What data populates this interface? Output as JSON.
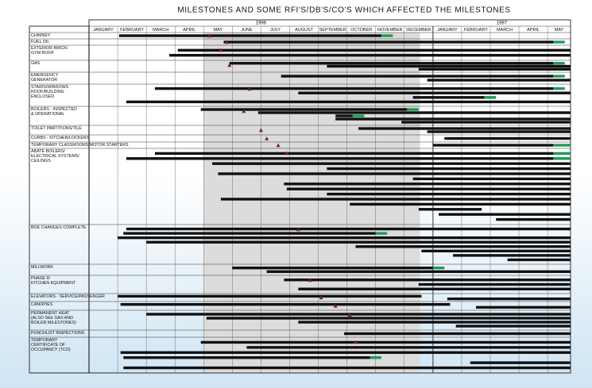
{
  "chart_data": {
    "type": "gantt",
    "title": "MILESTONES AND SOME RFI'S/DB'S/CO'S WHICH AFFECTED THE MILESTONES",
    "years": [
      "1996",
      "1997"
    ],
    "months": [
      "JANUARY",
      "FEBRUARY",
      "MARCH",
      "APRIL",
      "MAY",
      "JUNE",
      "JULY",
      "AUGUST",
      "SEPTEMBER",
      "OCTOBER",
      "NOVEMBER",
      "DECEMBER",
      "JANUARY",
      "FEBRUARY",
      "MARCH",
      "APRIL",
      "MAY"
    ],
    "xlim": [
      0,
      16.8
    ],
    "shaded": [
      4,
      11.55
    ],
    "bar_color": "#111111",
    "done_color": "#1f9a52",
    "milestone_color": "#7a2424",
    "rows": [
      {
        "label": [
          "CHIMNEY"
        ],
        "bars": [
          [
            1.05,
            10.2,
            10.6
          ]
        ],
        "milestone": 4.2
      },
      {
        "label": [
          "FUEL OIL"
        ],
        "bars": [
          [
            4.7,
            16.2,
            16.6
          ]
        ],
        "milestone": 4.8
      },
      {
        "label": [
          "EXTERIOR BRICK/",
          "GYM ROOF"
        ],
        "bars": [
          [
            3.1,
            16.8
          ],
          [
            2.8,
            16.8
          ]
        ],
        "milestone": 4.6
      },
      {
        "label": [
          "GAS"
        ],
        "bars": [
          [
            4.9,
            16.2,
            16.6
          ],
          [
            8.3,
            16.8
          ],
          [
            11.5,
            16.8
          ]
        ],
        "milestone": 4.9
      },
      {
        "label": [
          "EMERGENCY",
          "GENERATOR"
        ],
        "bars": [
          [
            6.7,
            16.2,
            16.6
          ],
          [
            11.8,
            16.8
          ]
        ]
      },
      {
        "label": [
          "STAIRS/WINDOWS",
          "ROOF/BUILDING",
          "ENCLOSED"
        ],
        "bars": [
          [
            2.3,
            16.2,
            16.6
          ],
          [
            7.3,
            16.8
          ],
          [
            11.3,
            13.8,
            14.2
          ],
          [
            1.3,
            16.8
          ]
        ],
        "milestone": 5.6
      },
      {
        "label": [
          "BOILERS - INSPECTED",
          "& OPERATIONAL"
        ],
        "bars": [
          [
            3.9,
            11.1,
            11.5
          ],
          [
            5.9,
            16.8
          ],
          [
            8.6,
            9.2,
            9.6
          ],
          [
            8.6,
            16.8
          ],
          [
            10.9,
            16.8
          ]
        ],
        "milestone": 5.4
      },
      {
        "label": [
          "TOILET PARTITIONS/TILE"
        ],
        "bars": [
          [
            9.4,
            16.8
          ],
          [
            11.8,
            16.8
          ]
        ],
        "milestone": 6.0
      },
      {
        "label": [
          "CURBS - KITCHEN/LOCKERS"
        ],
        "bars": [
          [
            12.4,
            16.8
          ]
        ],
        "milestone": 6.2
      },
      {
        "label": [
          "TEMPORARY CLASSROOMS/MOTOR STARTERS"
        ],
        "bars": [
          [
            12.0,
            16.2,
            16.8
          ]
        ],
        "milestone": 6.6
      },
      {
        "label": [
          "ABATE BOILERS/",
          "ELECTRICAL SYSTEMS/",
          "CEILINGS"
        ],
        "bars": [
          [
            2.3,
            16.2,
            16.8
          ],
          [
            1.3,
            16.2,
            16.8
          ],
          [
            4.3,
            16.8
          ],
          [
            8.3,
            16.8
          ],
          [
            4.5,
            16.8
          ],
          [
            11.3,
            16.8
          ],
          [
            6.8,
            16.8
          ],
          [
            6.9,
            16.8
          ],
          [
            8.3,
            16.8
          ],
          [
            4.6,
            16.8
          ],
          [
            9.1,
            16.8
          ],
          [
            11.5,
            13.7
          ],
          [
            12.2,
            16.8
          ],
          [
            14.2,
            16.8
          ]
        ],
        "milestone": 6.9
      },
      {
        "label": [
          "BOE CHANGES COMPLETE"
        ],
        "bars": [
          [
            1.3,
            16.8
          ],
          [
            1.2,
            10.0,
            10.4
          ],
          [
            1.0,
            16.8
          ],
          [
            2.0,
            16.8
          ],
          [
            9.3,
            16.8
          ],
          [
            11.6,
            16.8
          ],
          [
            12.7,
            16.8
          ],
          [
            14.6,
            16.8
          ]
        ],
        "milestone": 7.3
      },
      {
        "label": [
          "MILLWORK"
        ],
        "bars": [
          [
            5.0,
            12.0,
            12.4
          ],
          [
            6.2,
            16.8
          ]
        ]
      },
      {
        "label": [
          "PHASE III",
          "KITCHEN EQUIPMENT"
        ],
        "bars": [
          [
            6.8,
            16.8
          ],
          [
            11.5,
            16.8
          ],
          [
            7.3,
            16.8
          ]
        ],
        "milestone": 7.7
      },
      {
        "label": [
          "ELEVATORS - SERVICE/PASSENGER"
        ],
        "bars": [
          [
            1.0,
            11.6
          ],
          [
            12.5,
            16.8
          ]
        ],
        "milestone": 8.1
      },
      {
        "label": [
          "CANOPIES"
        ],
        "bars": [
          [
            1.1,
            12.6
          ],
          [
            13.5,
            16.8
          ]
        ],
        "milestone": 8.6
      },
      {
        "label": [
          "PERMANENT HEAT",
          "(ALSO SEE GAS AND",
          "BOILER MILESTONES)"
        ],
        "bars": [
          [
            2.0,
            16.8
          ],
          [
            4.1,
            16.8
          ],
          [
            7.3,
            16.8
          ],
          [
            12.8,
            16.8
          ]
        ],
        "milestone": 9.1
      },
      {
        "label": [
          "PUNCHLIST INSPECTIONS"
        ],
        "bars": [
          [
            8.9,
            16.8
          ]
        ]
      },
      {
        "label": [
          "TEMPORARY",
          "CERTIFICATE OF",
          "OCCUPANCY (TCO)"
        ],
        "bars": [
          [
            3.9,
            16.8
          ],
          [
            5.5,
            16.8
          ],
          [
            1.1,
            16.8
          ],
          [
            1.2,
            9.8,
            10.2
          ],
          [
            13.3,
            16.8
          ],
          [
            1.2,
            16.8
          ]
        ],
        "milestone": 9.3
      }
    ]
  }
}
